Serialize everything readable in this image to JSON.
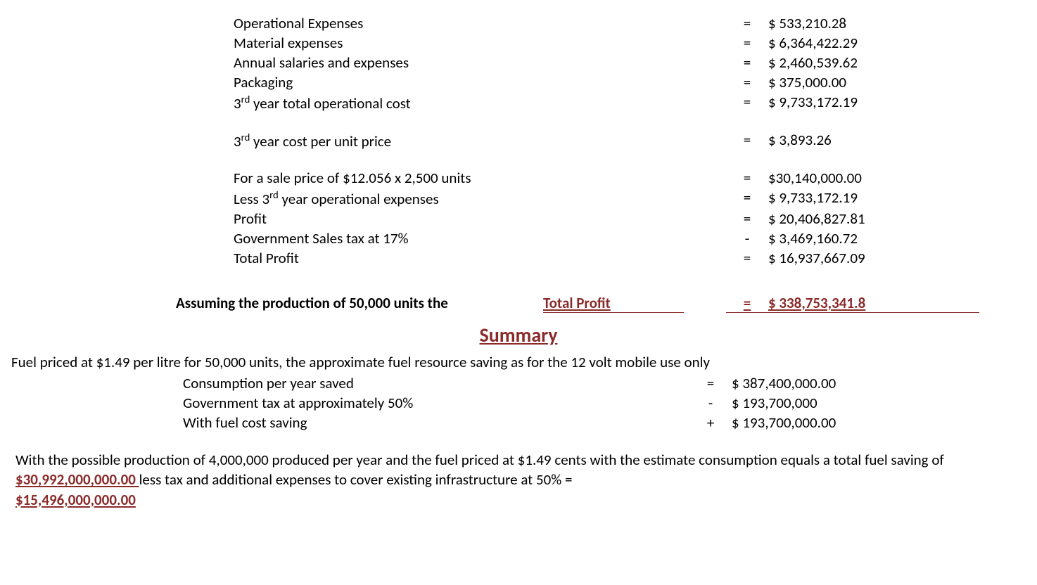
{
  "colors": {
    "text": "#000000",
    "accent": "#8b2a2a",
    "background": "#ffffff"
  },
  "typography": {
    "base_fontsize_pt": 16,
    "heading_fontsize_pt": 21,
    "font_family": "Calibri"
  },
  "table1": {
    "rows": [
      {
        "label": "Operational Expenses",
        "op": "=",
        "value": "$ 533,210.28",
        "emph": false
      },
      {
        "label": "Material expenses",
        "op": "=",
        "value": "$ 6,364,422.29",
        "emph": false
      },
      {
        "label": "Annual salaries and expenses",
        "op": "=",
        "value": "$ 2,460,539.62",
        "emph": false
      },
      {
        "label": "Packaging",
        "op": "=",
        "value": "$ 375,000.00",
        "emph": false
      },
      {
        "label": "3rd year total operational cost",
        "op": "=",
        "value": "$ 9,733,172.19",
        "emph": true,
        "sup": true
      },
      {
        "gap": true
      },
      {
        "label": "3rd year cost per unit price",
        "op": "=",
        "value": "$ 3,893.26",
        "emph": false,
        "sup": true
      },
      {
        "gap": true
      },
      {
        "label": "For a sale price of $12.056 x 2,500 units",
        "op": "=",
        "value": "$30,140,000.00",
        "emph": false
      },
      {
        "label": "Less 3rd year operational expenses",
        "op": "=",
        "value": "$ 9,733,172.19",
        "emph": false,
        "sup": true
      },
      {
        "label": "Profit",
        "op": "=",
        "value": "$ 20,406,827.81",
        "emph": true
      },
      {
        "label": "Government Sales tax at 17%",
        "op": "-",
        "value": "$ 3,469,160.72",
        "emph": false
      },
      {
        "label": "Total Profit",
        "op": "=",
        "value": "$ 16,937,667.09",
        "emph": true
      }
    ]
  },
  "assume": {
    "prefix": "Assuming the production of 50,000 units the",
    "total_profit_label": "Total Profit",
    "op": "=",
    "value": "$ 338,753,341.8"
  },
  "summary_heading": "Summary",
  "fuel_intro": "Fuel priced at $1.49 per litre for 50,000 units, the approximate fuel resource saving as for the 12 volt mobile use only",
  "table2": {
    "rows": [
      {
        "label": "Consumption per year saved",
        "op": "=",
        "value": "$ 387,400,000.00",
        "emph": false
      },
      {
        "label": "Government tax at approximately 50%",
        "op": "-",
        "value": "$ 193,700,000",
        "emph": false
      },
      {
        "label": "With fuel cost saving",
        "op": "+",
        "value": "$ 193,700,000.00",
        "emph": true
      }
    ]
  },
  "closing": {
    "part1": "With the possible production of 4,000,000 produced per year and the fuel priced at $1.49 cents with the estimate consumption equals a total fuel saving of ",
    "money1": "$30,992,000,000.00 ",
    "part2": "less tax and additional expenses to cover existing infrastructure at 50% = ",
    "money2": "$15,496,000,000.00"
  }
}
